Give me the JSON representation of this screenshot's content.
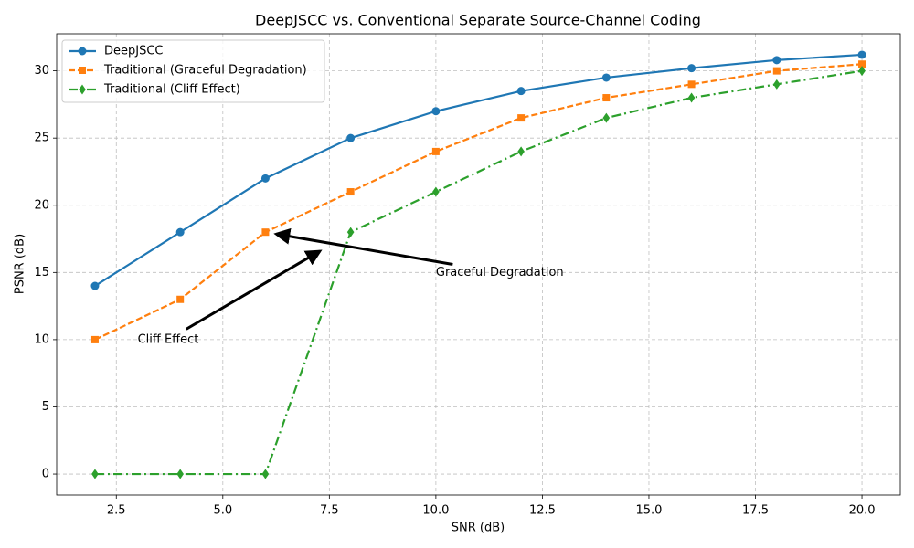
{
  "chart_data": {
    "type": "line",
    "title": "DeepJSCC vs. Conventional Separate Source-Channel Coding",
    "xlabel": "SNR (dB)",
    "ylabel": "PSNR (dB)",
    "x": [
      2,
      4,
      6,
      8,
      10,
      12,
      14,
      16,
      18,
      20
    ],
    "series": [
      {
        "name": "DeepJSCC",
        "color": "#1f77b4",
        "linestyle": "solid",
        "marker": "circle",
        "values": [
          14,
          18,
          22,
          25,
          27,
          28.5,
          29.5,
          30.2,
          30.8,
          31.2
        ]
      },
      {
        "name": "Traditional (Graceful Degradation)",
        "color": "#ff7f0e",
        "linestyle": "dashed",
        "marker": "square",
        "values": [
          10,
          13,
          18,
          21,
          24,
          26.5,
          28,
          29,
          30,
          30.5
        ]
      },
      {
        "name": "Traditional (Cliff Effect)",
        "color": "#2ca02c",
        "linestyle": "dashdot",
        "marker": "diamond",
        "values": [
          0,
          0,
          0,
          18,
          21,
          24,
          26.5,
          28,
          29,
          30
        ]
      }
    ],
    "xlim": [
      1.1,
      20.9
    ],
    "ylim": [
      -1.56,
      32.76
    ],
    "xticks": [
      2.5,
      {
        "value": 5,
        "label": "5.0"
      },
      7.5,
      {
        "value": 10,
        "label": "10.0"
      },
      12.5,
      {
        "value": 15,
        "label": "15.0"
      },
      17.5,
      {
        "value": 20,
        "label": "20.0"
      }
    ],
    "yticks": [
      0,
      5,
      10,
      15,
      20,
      25,
      30
    ],
    "grid": true,
    "legend": "upper left",
    "annotations": [
      {
        "text": "Graceful Degradation",
        "xy": [
          6,
          18
        ],
        "xytext": [
          10,
          15
        ]
      },
      {
        "text": "Cliff Effect",
        "xy": [
          7.5,
          17
        ],
        "xytext": [
          3,
          10
        ]
      }
    ]
  }
}
